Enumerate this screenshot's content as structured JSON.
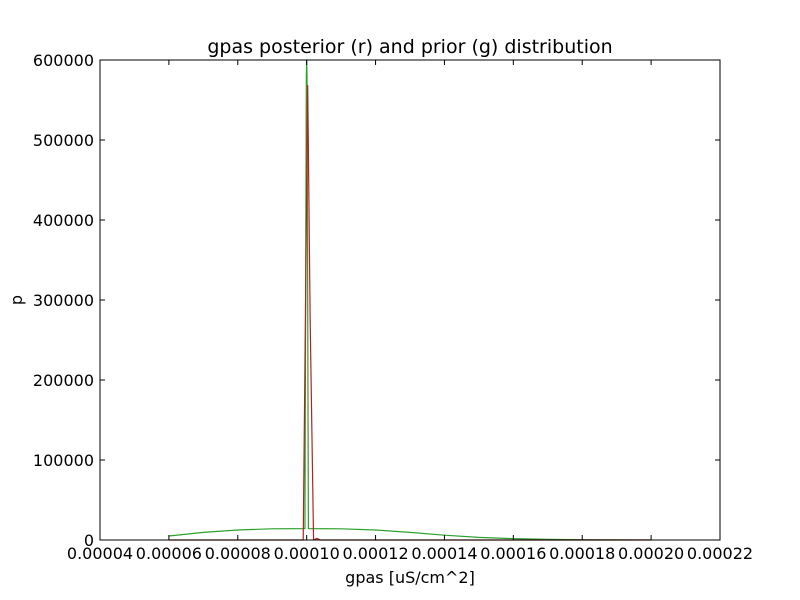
{
  "chart_data": {
    "type": "line",
    "title": "gpas posterior (r) and prior (g) distribution",
    "xlabel": "gpas [uS/cm^2]",
    "ylabel": "p",
    "xlim": [
      4e-05,
      0.00022
    ],
    "ylim": [
      0,
      600000
    ],
    "x_ticks": [
      4e-05,
      6e-05,
      8e-05,
      0.0001,
      0.00012,
      0.00014,
      0.00016,
      0.00018,
      0.0002,
      0.00022
    ],
    "x_tick_labels": [
      "0.00004",
      "0.00006",
      "0.00008",
      "0.00010",
      "0.00012",
      "0.00014",
      "0.00016",
      "0.00018",
      "0.00020",
      "0.00022"
    ],
    "y_ticks": [
      0,
      100000,
      200000,
      300000,
      400000,
      500000,
      600000
    ],
    "y_tick_labels": [
      "0",
      "100000",
      "200000",
      "300000",
      "400000",
      "500000",
      "600000"
    ],
    "grid": false,
    "series": [
      {
        "color": "#2ca02c",
        "x": [
          6e-05,
          7e-05,
          8e-05,
          9e-05,
          9.95e-05,
          9.99e-05,
          0.0001,
          0.0001001,
          0.0001005,
          0.00011,
          0.00012,
          0.00013,
          0.00014,
          0.00015,
          0.00016,
          0.00017,
          0.00018,
          0.00019,
          0.0002
        ],
        "y": [
          5000,
          9500,
          12500,
          14000,
          14200,
          580000,
          600000,
          580000,
          14200,
          14000,
          12500,
          9500,
          6000,
          3300,
          1700,
          800,
          350,
          150,
          60
        ]
      },
      {
        "color": "#b22222",
        "x": [
          6e-05,
          8e-05,
          9.85e-05,
          9.9e-05,
          0.0001003,
          0.000101,
          0.000102,
          0.000103,
          0.000104,
          0.00012,
          0.0002
        ],
        "y": [
          0,
          0,
          0,
          0,
          568000,
          280000,
          0,
          2000,
          0,
          0,
          0
        ]
      }
    ]
  }
}
